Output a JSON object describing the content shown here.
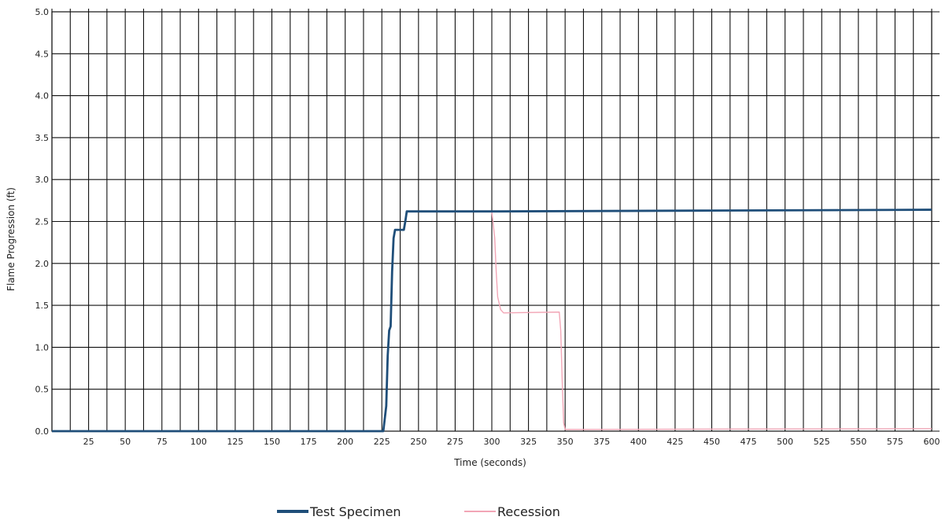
{
  "chart_data": {
    "type": "line",
    "xlabel": "Time (seconds)",
    "ylabel": "Flame Progression (ft)",
    "xlim": [
      0,
      600
    ],
    "ylim": [
      0,
      5.0
    ],
    "x_ticks": [
      25,
      50,
      75,
      100,
      125,
      150,
      175,
      200,
      225,
      250,
      275,
      300,
      325,
      350,
      375,
      400,
      425,
      450,
      475,
      500,
      525,
      550,
      575,
      600
    ],
    "y_ticks": [
      "0.0",
      "0.5",
      "1.0",
      "1.5",
      "2.0",
      "2.5",
      "3.0",
      "3.5",
      "4.0",
      "4.5",
      "5.0"
    ],
    "grid": true,
    "legend_position": "bottom-center",
    "series": [
      {
        "name": "Test Specimen",
        "color": "#1f4e79",
        "points": [
          [
            0,
            0
          ],
          [
            226,
            0
          ],
          [
            228,
            0.3
          ],
          [
            229,
            0.9
          ],
          [
            230,
            1.2
          ],
          [
            231,
            1.25
          ],
          [
            232,
            1.9
          ],
          [
            233,
            2.3
          ],
          [
            234,
            2.4
          ],
          [
            240,
            2.4
          ],
          [
            241,
            2.5
          ],
          [
            242,
            2.62
          ],
          [
            300,
            2.62
          ],
          [
            450,
            2.63
          ],
          [
            600,
            2.64
          ]
        ]
      },
      {
        "name": "Recession",
        "color": "#f2a6b6",
        "points": [
          [
            0,
            0
          ],
          [
            226,
            0
          ],
          [
            228,
            0.3
          ],
          [
            229,
            0.9
          ],
          [
            230,
            1.2
          ],
          [
            231,
            1.25
          ],
          [
            232,
            1.9
          ],
          [
            233,
            2.3
          ],
          [
            234,
            2.4
          ],
          [
            240,
            2.4
          ],
          [
            241,
            2.5
          ],
          [
            242,
            2.62
          ],
          [
            300,
            2.62
          ],
          [
            302,
            2.3
          ],
          [
            303,
            1.9
          ],
          [
            304,
            1.6
          ],
          [
            306,
            1.45
          ],
          [
            308,
            1.41
          ],
          [
            346,
            1.42
          ],
          [
            347,
            1.2
          ],
          [
            348,
            0.6
          ],
          [
            349,
            0.1
          ],
          [
            350,
            0.02
          ],
          [
            600,
            0.03
          ]
        ]
      }
    ]
  }
}
